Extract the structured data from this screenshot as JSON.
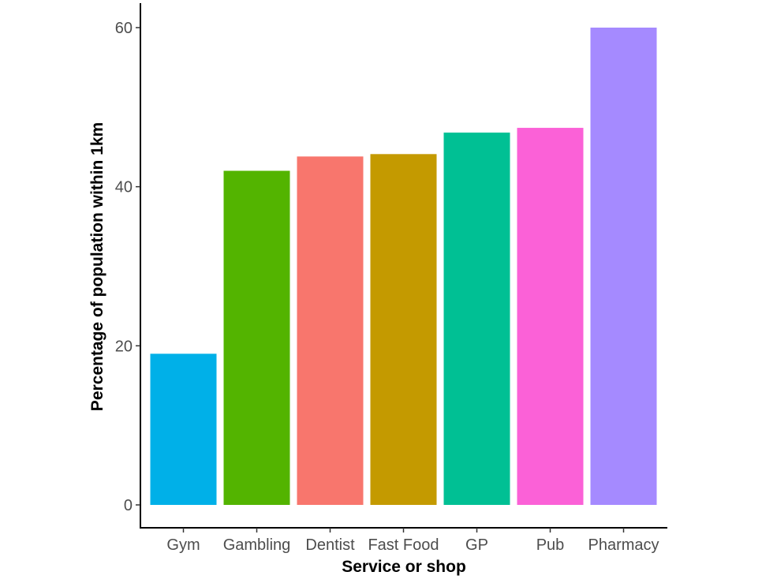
{
  "chart_data": {
    "type": "bar",
    "title": "",
    "xlabel": "Service or shop",
    "ylabel": "Percentage of population within 1km",
    "categories": [
      "Gym",
      "Gambling",
      "Dentist",
      "Fast Food",
      "GP",
      "Pub",
      "Pharmacy"
    ],
    "values": [
      19,
      42,
      43.8,
      44.1,
      46.8,
      47.4,
      60
    ],
    "colors": [
      "#00b0e8",
      "#53b400",
      "#f8766d",
      "#c49a00",
      "#00c094",
      "#fb61d7",
      "#a58aff"
    ],
    "yticks": [
      0,
      20,
      40,
      60
    ],
    "ylim": [
      0,
      63
    ],
    "grid": false,
    "legend": "none"
  }
}
